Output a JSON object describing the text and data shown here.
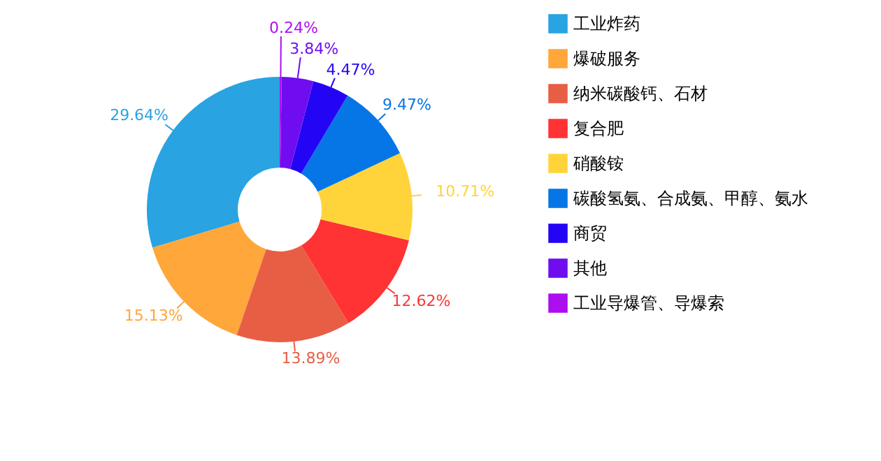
{
  "chart_data": {
    "type": "donut",
    "categories": [
      "工业炸药",
      "爆破服务",
      "纳米碳酸钙、石材",
      "复合肥",
      "硝酸铵",
      "碳酸氢氨、合成氨、甲醇、氨水",
      "商贸",
      "其他",
      "工业导爆管、导爆索"
    ],
    "values": [
      29.64,
      15.13,
      13.89,
      12.62,
      10.71,
      9.47,
      4.47,
      3.84,
      0.24
    ],
    "colors": [
      "#29a3e1",
      "#ffa73b",
      "#e85e44",
      "#ff3333",
      "#ffd43b",
      "#0676e6",
      "#2404f5",
      "#6f0df0",
      "#ad0ef0"
    ],
    "value_labels": [
      "29.64%",
      "15.13%",
      "13.89%",
      "12.62%",
      "10.71%",
      "9.47%",
      "4.47%",
      "3.84%",
      "0.24%"
    ],
    "legend": "right"
  }
}
